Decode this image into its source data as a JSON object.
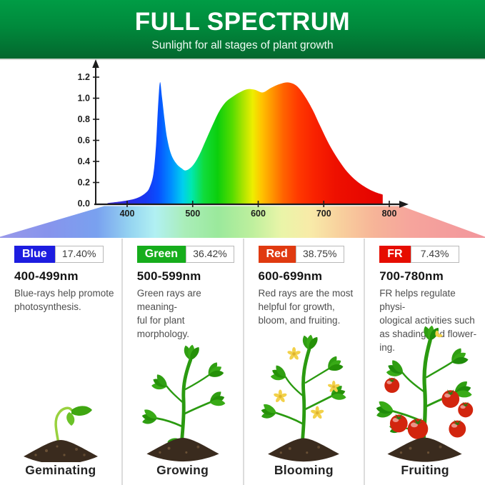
{
  "banner": {
    "title": "FULL SPECTRUM",
    "subtitle": "Sunlight for all stages of plant growth"
  },
  "chart": {
    "y_ticks": [
      "1.2",
      "1.0",
      "0.8",
      "0.6",
      "0.4",
      "0.2",
      "0.0"
    ],
    "x_ticks": [
      "400",
      "500",
      "600",
      "700",
      "800"
    ]
  },
  "chart_data": {
    "type": "area",
    "grid": false,
    "xlim": [
      370,
      820
    ],
    "ylim": [
      0,
      1.2
    ],
    "x_tick_values": [
      400,
      500,
      600,
      700,
      800
    ],
    "y_tick_values": [
      0.0,
      0.2,
      0.4,
      0.6,
      0.8,
      1.0,
      1.2
    ],
    "x": [
      370,
      390,
      405,
      418,
      428,
      434,
      440,
      444,
      447,
      450,
      453,
      457,
      461,
      467,
      475,
      483,
      490,
      500,
      510,
      520,
      530,
      540,
      550,
      560,
      570,
      583,
      595,
      607,
      620,
      633,
      645,
      658,
      670,
      683,
      695,
      708,
      722,
      736,
      750,
      765,
      778,
      790
    ],
    "y": [
      0.005,
      0.02,
      0.035,
      0.06,
      0.1,
      0.15,
      0.28,
      0.55,
      0.9,
      1.15,
      1.02,
      0.8,
      0.62,
      0.47,
      0.38,
      0.335,
      0.315,
      0.36,
      0.46,
      0.6,
      0.74,
      0.87,
      0.96,
      1.01,
      1.05,
      1.085,
      1.08,
      1.055,
      1.1,
      1.135,
      1.15,
      1.12,
      1.03,
      0.89,
      0.73,
      0.565,
      0.42,
      0.3,
      0.215,
      0.15,
      0.11,
      0.085
    ]
  },
  "bands": [
    {
      "name": "Blue",
      "color": "#1d1de0",
      "percent": "17.40%",
      "range": "400-499nm",
      "description": [
        "Blue-rays help promote",
        "photosynthesis."
      ],
      "stage": "Geminating"
    },
    {
      "name": "Green",
      "color": "#16ad1c",
      "percent": "36.42%",
      "range": "500-599nm",
      "description": [
        "Green rays are meaning-",
        "ful for plant morphology."
      ],
      "stage": "Growing"
    },
    {
      "name": "Red",
      "color": "#e03a10",
      "percent": "38.75%",
      "range": "600-699nm",
      "description": [
        "Red rays are the most",
        "helpful for growth,",
        "bloom, and fruiting."
      ],
      "stage": "Blooming"
    },
    {
      "name": "FR",
      "color": "#e60d00",
      "percent": "7.43%",
      "range": "700-780nm",
      "description": [
        "FR helps regulate physi-",
        "ological activities such",
        "as shading and flower-",
        "ing."
      ],
      "stage": "Fruiting"
    }
  ]
}
